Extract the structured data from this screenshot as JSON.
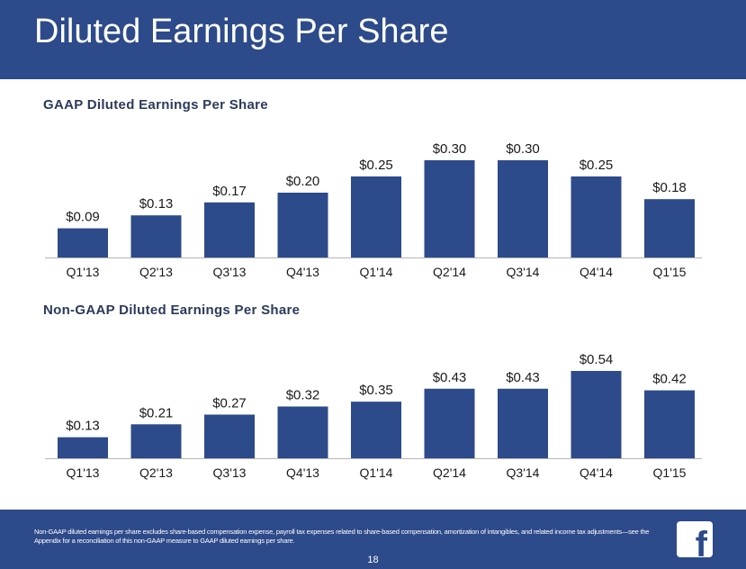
{
  "header": {
    "title": "Diluted Earnings Per Share"
  },
  "colors": {
    "header_bg": "#2d4a8a",
    "bar": "#2d4a8a",
    "title_text": "#2b3a5c",
    "label_text": "#1a1a1a"
  },
  "chart_data": [
    {
      "type": "bar",
      "title": "GAAP Diluted Earnings Per Share",
      "categories": [
        "Q1'13",
        "Q2'13",
        "Q3'13",
        "Q4'13",
        "Q1'14",
        "Q2'14",
        "Q3'14",
        "Q4'14",
        "Q1'15"
      ],
      "values": [
        0.09,
        0.13,
        0.17,
        0.2,
        0.25,
        0.3,
        0.3,
        0.25,
        0.18
      ],
      "labels": [
        "$0.09",
        "$0.13",
        "$0.17",
        "$0.20",
        "$0.25",
        "$0.30",
        "$0.30",
        "$0.25",
        "$0.18"
      ],
      "xlabel": "",
      "ylabel": "",
      "ylim": [
        0,
        0.3
      ],
      "grid": false
    },
    {
      "type": "bar",
      "title": "Non-GAAP Diluted Earnings Per Share",
      "categories": [
        "Q1'13",
        "Q2'13",
        "Q3'13",
        "Q4'13",
        "Q1'14",
        "Q2'14",
        "Q3'14",
        "Q4'14",
        "Q1'15"
      ],
      "values": [
        0.13,
        0.21,
        0.27,
        0.32,
        0.35,
        0.43,
        0.43,
        0.54,
        0.42
      ],
      "labels": [
        "$0.13",
        "$0.21",
        "$0.27",
        "$0.32",
        "$0.35",
        "$0.43",
        "$0.43",
        "$0.54",
        "$0.42"
      ],
      "xlabel": "",
      "ylabel": "",
      "ylim": [
        0,
        0.54
      ],
      "grid": false
    }
  ],
  "footer": {
    "footnote": "Non-GAAP diluted earnings per share excludes share-based compensation expense, payroll tax expenses related to share-based compensation, amortization of intangibles, and related income tax adjustments—see the Appendix for a reconciliation of this non-GAAP measure to GAAP diluted earnings per share.",
    "page_number": "18",
    "logo_letter": "f"
  },
  "icons": {
    "logo": "facebook-logo-icon"
  }
}
